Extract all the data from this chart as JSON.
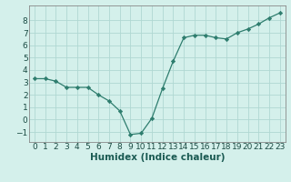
{
  "x": [
    0,
    1,
    2,
    3,
    4,
    5,
    6,
    7,
    8,
    9,
    10,
    11,
    12,
    13,
    14,
    15,
    16,
    17,
    18,
    19,
    20,
    21,
    22,
    23
  ],
  "y": [
    3.3,
    3.3,
    3.1,
    2.6,
    2.6,
    2.6,
    2.0,
    1.5,
    0.7,
    -1.2,
    -1.1,
    0.1,
    2.5,
    4.7,
    6.6,
    6.8,
    6.8,
    6.6,
    6.5,
    7.0,
    7.3,
    7.7,
    8.2,
    8.6
  ],
  "line_color": "#2e7d6e",
  "marker": "D",
  "marker_size": 2.2,
  "bg_color": "#d4f0eb",
  "grid_color": "#b0d8d2",
  "xlabel": "Humidex (Indice chaleur)",
  "xlabel_fontsize": 7.5,
  "tick_fontsize": 6.5,
  "xlim": [
    -0.5,
    23.5
  ],
  "ylim": [
    -1.8,
    9.2
  ],
  "yticks": [
    -1,
    0,
    1,
    2,
    3,
    4,
    5,
    6,
    7,
    8
  ],
  "xticks": [
    0,
    1,
    2,
    3,
    4,
    5,
    6,
    7,
    8,
    9,
    10,
    11,
    12,
    13,
    14,
    15,
    16,
    17,
    18,
    19,
    20,
    21,
    22,
    23
  ]
}
